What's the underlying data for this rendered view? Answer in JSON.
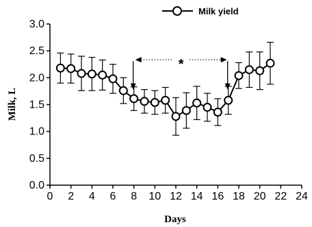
{
  "chart_data": {
    "type": "line",
    "title": "",
    "xlabel": "Days",
    "ylabel": "Milk, L",
    "xlim": [
      0,
      24
    ],
    "ylim": [
      0.0,
      3.0
    ],
    "x_ticks": [
      "0",
      "2",
      "4",
      "6",
      "8",
      "10",
      "12",
      "14",
      "16",
      "18",
      "20",
      "22",
      "24"
    ],
    "y_ticks": [
      "0.0",
      "0.5",
      "1.0",
      "1.5",
      "2.0",
      "2.5",
      "3.0"
    ],
    "grid": false,
    "legend_position": "top",
    "series": [
      {
        "name": "Milk yield",
        "marker": "open-circle",
        "x": [
          1,
          2,
          3,
          4,
          5,
          6,
          7,
          8,
          9,
          10,
          11,
          12,
          13,
          14,
          15,
          16,
          17,
          18,
          19,
          20,
          21
        ],
        "y": [
          2.18,
          2.17,
          2.08,
          2.07,
          2.05,
          1.98,
          1.76,
          1.61,
          1.56,
          1.54,
          1.58,
          1.28,
          1.39,
          1.53,
          1.45,
          1.36,
          1.58,
          2.04,
          2.15,
          2.13,
          2.27
        ],
        "error": [
          0.28,
          0.27,
          0.32,
          0.31,
          0.28,
          0.27,
          0.24,
          0.22,
          0.22,
          0.22,
          0.24,
          0.35,
          0.33,
          0.31,
          0.26,
          0.25,
          0.26,
          0.24,
          0.33,
          0.35,
          0.39
        ]
      }
    ],
    "annotations": [
      {
        "text": "*",
        "kind": "significance-bracket",
        "x_from": 8,
        "x_to": 17,
        "y": 2.45
      }
    ]
  }
}
